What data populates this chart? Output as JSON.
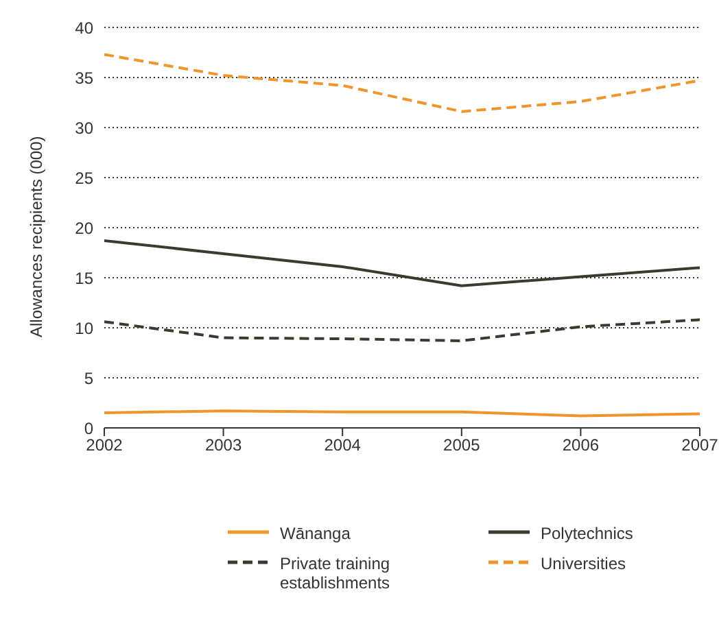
{
  "chart_data": {
    "type": "line",
    "ylabel": "Allowances recipients (000)",
    "x": [
      2002,
      2003,
      2004,
      2005,
      2006,
      2007
    ],
    "xlim": [
      2002,
      2007
    ],
    "xticks": [
      2002,
      2003,
      2004,
      2005,
      2006,
      2007
    ],
    "ylim": [
      0,
      40
    ],
    "yticks": [
      0,
      5,
      10,
      15,
      20,
      25,
      30,
      35,
      40
    ],
    "grid": "y",
    "legend": "bottom",
    "marker": "none",
    "series": [
      {
        "name": "Wānanga",
        "color": "#f0942c",
        "line_style": "solid",
        "values": [
          1.5,
          1.7,
          1.6,
          1.6,
          1.2,
          1.4
        ]
      },
      {
        "name": "Polytechnics",
        "color": "#3a3a2e",
        "line_style": "solid",
        "values": [
          18.7,
          17.4,
          16.1,
          14.2,
          15.1,
          16.0
        ]
      },
      {
        "name": "Private training establishments",
        "color": "#3a3a2e",
        "line_style": "dashed",
        "values": [
          10.6,
          9.0,
          8.9,
          8.7,
          10.1,
          10.8
        ]
      },
      {
        "name": "Universities",
        "color": "#f0942c",
        "line_style": "dashed",
        "values": [
          37.3,
          35.2,
          34.2,
          31.6,
          32.6,
          34.7
        ]
      }
    ]
  }
}
